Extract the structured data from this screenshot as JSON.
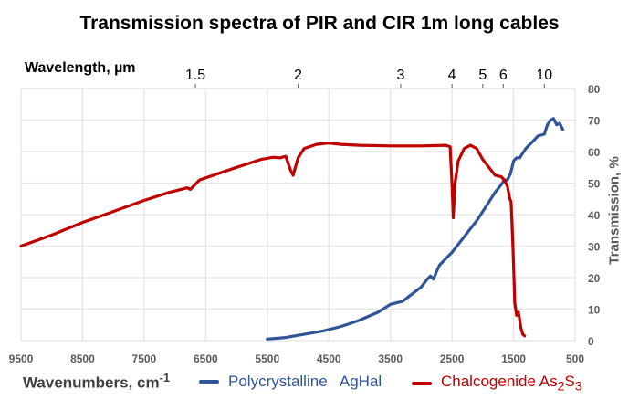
{
  "chart_data": {
    "type": "line",
    "title": "Transmission spectra of PIR and CIR  1m   long cables",
    "xlabel": "Wavenumbers,  cm",
    "xlabel_sup": "-1",
    "ylabel": "Transmission, %",
    "top_axis_label": "Wavelength,  µm",
    "xlim": [
      9500,
      500
    ],
    "ylim": [
      0,
      80
    ],
    "grid": true,
    "x_ticks": [
      9500,
      8500,
      7500,
      6500,
      5500,
      4500,
      3500,
      2500,
      1500,
      500
    ],
    "y_ticks": [
      0,
      10,
      20,
      30,
      40,
      50,
      60,
      70,
      80
    ],
    "top_ticks": [
      {
        "label": "1.5",
        "wavenumber": 6667
      },
      {
        "label": "2",
        "wavenumber": 5000
      },
      {
        "label": "3",
        "wavenumber": 3333
      },
      {
        "label": "4",
        "wavenumber": 2500
      },
      {
        "label": "5",
        "wavenumber": 2000
      },
      {
        "label": "6",
        "wavenumber": 1667
      },
      {
        "label": "10",
        "wavenumber": 1000
      }
    ],
    "legend_position": "bottom",
    "series": [
      {
        "name": "Polycrystalline   AgHal",
        "color": "#2F5597",
        "points": [
          [
            5500,
            0.5
          ],
          [
            5200,
            1
          ],
          [
            4900,
            2
          ],
          [
            4600,
            3
          ],
          [
            4300,
            4.5
          ],
          [
            4000,
            6.5
          ],
          [
            3700,
            9
          ],
          [
            3500,
            11.5
          ],
          [
            3300,
            12.5
          ],
          [
            3200,
            14
          ],
          [
            3000,
            17
          ],
          [
            2900,
            19.5
          ],
          [
            2850,
            20.5
          ],
          [
            2800,
            19.5
          ],
          [
            2750,
            22
          ],
          [
            2700,
            24
          ],
          [
            2500,
            28
          ],
          [
            2300,
            33
          ],
          [
            2100,
            38
          ],
          [
            1900,
            44
          ],
          [
            1800,
            47
          ],
          [
            1700,
            49.5
          ],
          [
            1650,
            51
          ],
          [
            1600,
            51
          ],
          [
            1550,
            53
          ],
          [
            1500,
            57
          ],
          [
            1450,
            58
          ],
          [
            1400,
            58
          ],
          [
            1300,
            61
          ],
          [
            1200,
            63
          ],
          [
            1100,
            65
          ],
          [
            1000,
            65.5
          ],
          [
            950,
            68.5
          ],
          [
            900,
            70
          ],
          [
            850,
            70.5
          ],
          [
            800,
            68.5
          ],
          [
            750,
            69
          ],
          [
            700,
            67
          ]
        ]
      },
      {
        "name": "Chalcogenide As2S3",
        "name_main": "Chalcogenide As",
        "name_sub1": "2",
        "name_mid": "S",
        "name_sub2": "3",
        "color": "#C00000",
        "points": [
          [
            9500,
            30
          ],
          [
            9000,
            33.5
          ],
          [
            8500,
            37.5
          ],
          [
            8000,
            41
          ],
          [
            7500,
            44.5
          ],
          [
            7100,
            47
          ],
          [
            6800,
            48.5
          ],
          [
            6750,
            48
          ],
          [
            6600,
            51
          ],
          [
            6300,
            53
          ],
          [
            6000,
            55
          ],
          [
            5600,
            57.5
          ],
          [
            5400,
            58.2
          ],
          [
            5300,
            58
          ],
          [
            5200,
            58.5
          ],
          [
            5120,
            54
          ],
          [
            5080,
            52.5
          ],
          [
            5000,
            58
          ],
          [
            4900,
            61
          ],
          [
            4700,
            62.3
          ],
          [
            4500,
            62.7
          ],
          [
            4300,
            62.3
          ],
          [
            4000,
            62
          ],
          [
            3500,
            61.8
          ],
          [
            3000,
            61.8
          ],
          [
            2600,
            62
          ],
          [
            2530,
            61.5
          ],
          [
            2500,
            50
          ],
          [
            2480,
            39
          ],
          [
            2450,
            50
          ],
          [
            2400,
            57
          ],
          [
            2300,
            61
          ],
          [
            2200,
            62
          ],
          [
            2100,
            61
          ],
          [
            2000,
            57.5
          ],
          [
            1900,
            55
          ],
          [
            1800,
            52.5
          ],
          [
            1700,
            52
          ],
          [
            1650,
            51
          ],
          [
            1600,
            49
          ],
          [
            1560,
            45
          ],
          [
            1540,
            44
          ],
          [
            1510,
            30
          ],
          [
            1480,
            12
          ],
          [
            1450,
            8
          ],
          [
            1420,
            9
          ],
          [
            1380,
            4
          ],
          [
            1350,
            2
          ],
          [
            1320,
            1.5
          ]
        ]
      }
    ]
  }
}
